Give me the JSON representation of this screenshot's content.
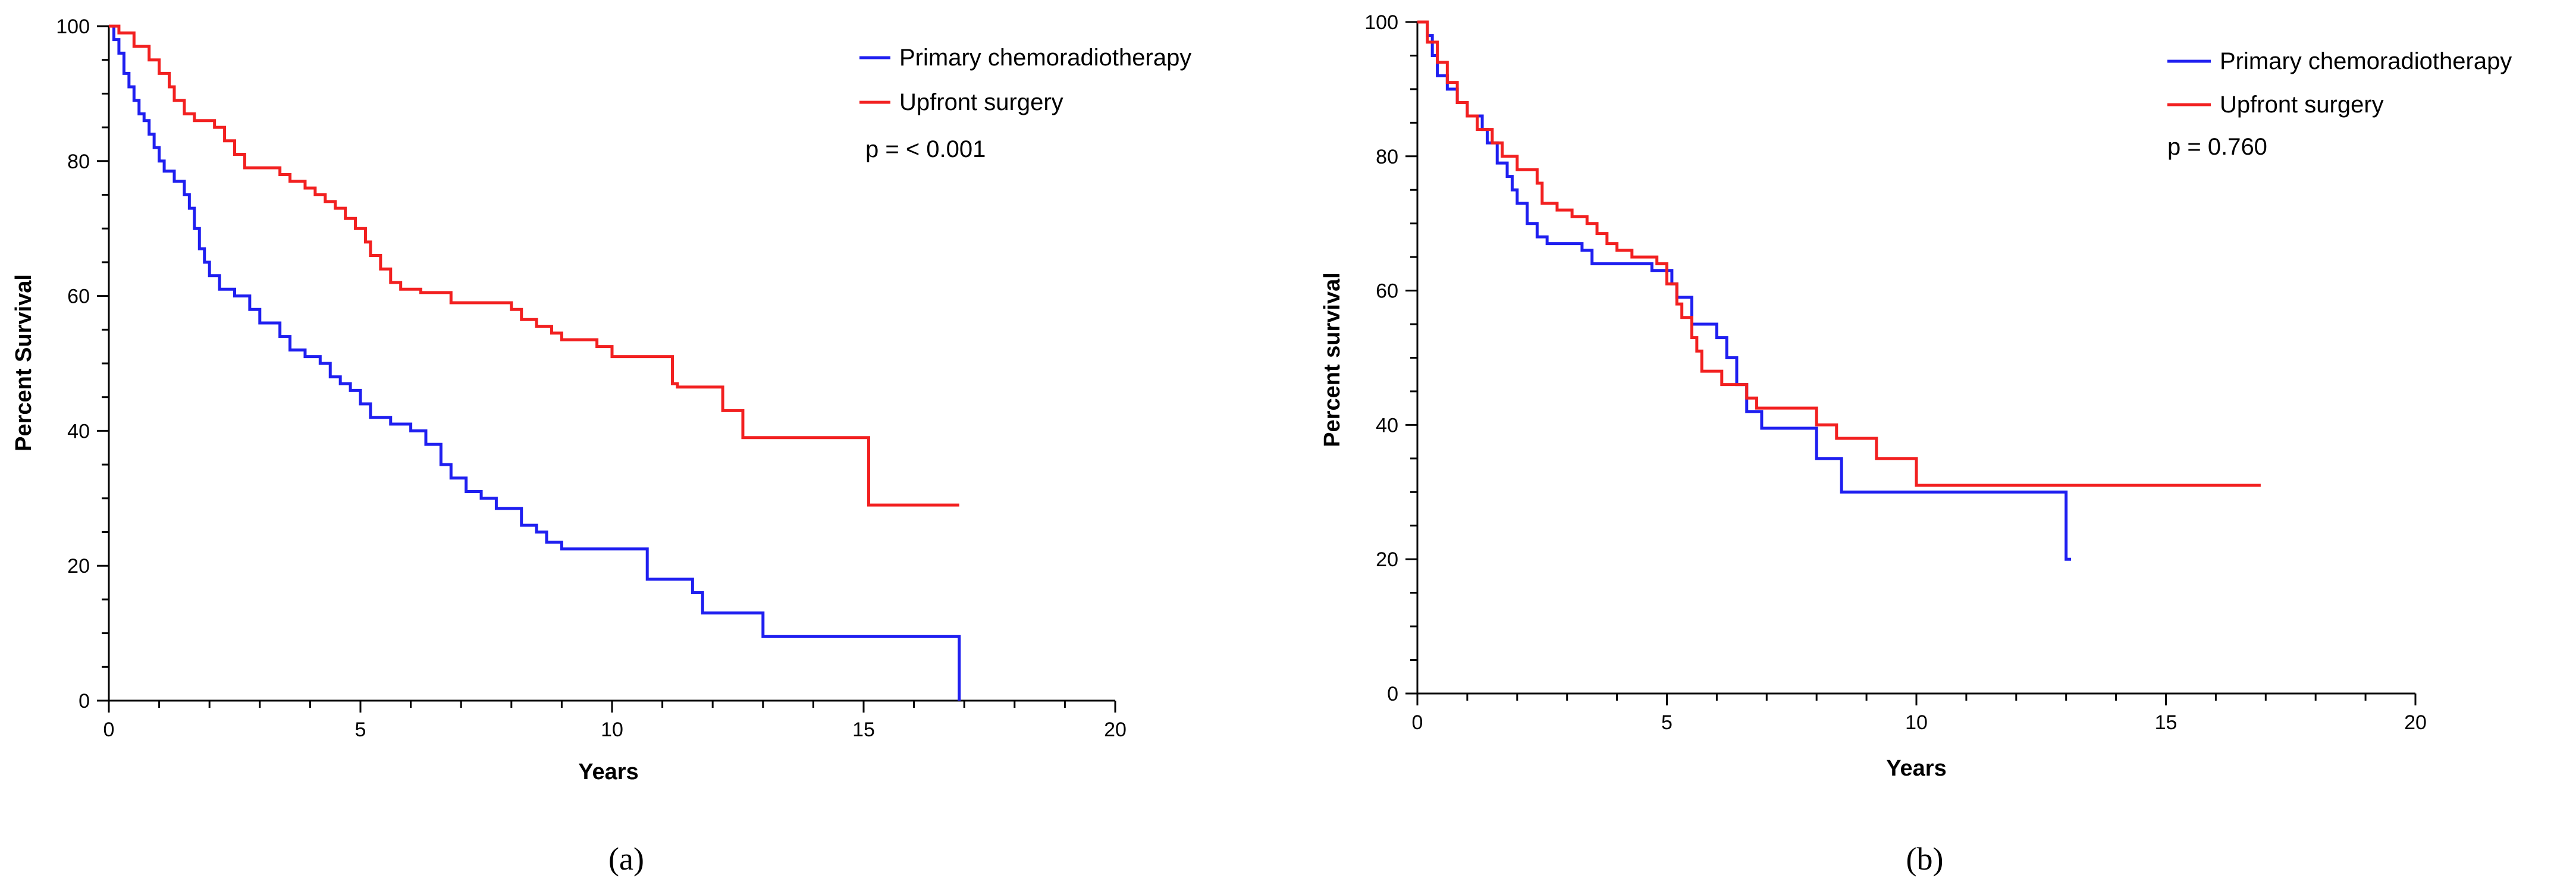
{
  "chart_data": [
    {
      "type": "line",
      "panel_label": "(a)",
      "xlabel": "Years",
      "ylabel": "Percent Survival",
      "xlim": [
        0,
        20
      ],
      "ylim": [
        0,
        100
      ],
      "xticks": [
        0,
        5,
        10,
        15,
        20
      ],
      "yticks": [
        0,
        20,
        40,
        60,
        80,
        100
      ],
      "pvalue": "p = < 0.001",
      "legend_position": "top-right",
      "series": [
        {
          "name": "Primary chemoradiotherapy",
          "color": "#1f1ff0",
          "points": [
            [
              0,
              100
            ],
            [
              0.1,
              98
            ],
            [
              0.2,
              96
            ],
            [
              0.3,
              93
            ],
            [
              0.4,
              91
            ],
            [
              0.5,
              89
            ],
            [
              0.6,
              87
            ],
            [
              0.7,
              86
            ],
            [
              0.8,
              84
            ],
            [
              0.9,
              82
            ],
            [
              1.0,
              80
            ],
            [
              1.1,
              78.5
            ],
            [
              1.3,
              77
            ],
            [
              1.5,
              75
            ],
            [
              1.6,
              73
            ],
            [
              1.7,
              70
            ],
            [
              1.8,
              67
            ],
            [
              1.9,
              65
            ],
            [
              2.0,
              63
            ],
            [
              2.2,
              61
            ],
            [
              2.5,
              60
            ],
            [
              2.8,
              58
            ],
            [
              3.0,
              56
            ],
            [
              3.4,
              54
            ],
            [
              3.6,
              52
            ],
            [
              3.9,
              51
            ],
            [
              4.2,
              50
            ],
            [
              4.4,
              48
            ],
            [
              4.6,
              47
            ],
            [
              4.8,
              46
            ],
            [
              5.0,
              44
            ],
            [
              5.2,
              42
            ],
            [
              5.6,
              41
            ],
            [
              6.0,
              40
            ],
            [
              6.3,
              38
            ],
            [
              6.6,
              35
            ],
            [
              6.8,
              33
            ],
            [
              7.1,
              31
            ],
            [
              7.4,
              30
            ],
            [
              7.7,
              28.5
            ],
            [
              8.2,
              26
            ],
            [
              8.5,
              25
            ],
            [
              8.7,
              23.5
            ],
            [
              9.0,
              22.5
            ],
            [
              10.7,
              18
            ],
            [
              11.6,
              16
            ],
            [
              11.8,
              13
            ],
            [
              13.0,
              9.5
            ],
            [
              16.9,
              0
            ]
          ]
        },
        {
          "name": "Upfront surgery",
          "color": "#f22020",
          "points": [
            [
              0,
              100
            ],
            [
              0.2,
              99
            ],
            [
              0.5,
              97
            ],
            [
              0.8,
              95
            ],
            [
              1.0,
              93
            ],
            [
              1.2,
              91
            ],
            [
              1.3,
              89
            ],
            [
              1.5,
              87
            ],
            [
              1.7,
              86
            ],
            [
              2.1,
              85
            ],
            [
              2.3,
              83
            ],
            [
              2.5,
              81
            ],
            [
              2.7,
              79
            ],
            [
              3.4,
              78
            ],
            [
              3.6,
              77
            ],
            [
              3.9,
              76
            ],
            [
              4.1,
              75
            ],
            [
              4.3,
              74
            ],
            [
              4.5,
              73
            ],
            [
              4.7,
              71.5
            ],
            [
              4.9,
              70
            ],
            [
              5.1,
              68
            ],
            [
              5.2,
              66
            ],
            [
              5.4,
              64
            ],
            [
              5.6,
              62
            ],
            [
              5.8,
              61
            ],
            [
              6.2,
              60.5
            ],
            [
              6.8,
              59
            ],
            [
              8.0,
              58
            ],
            [
              8.2,
              56.5
            ],
            [
              8.5,
              55.5
            ],
            [
              8.8,
              54.5
            ],
            [
              9.0,
              53.5
            ],
            [
              9.7,
              52.5
            ],
            [
              10.0,
              51
            ],
            [
              11.2,
              47
            ],
            [
              11.3,
              46.5
            ],
            [
              12.2,
              43
            ],
            [
              12.6,
              39
            ],
            [
              15.1,
              29
            ],
            [
              16.9,
              29
            ]
          ]
        }
      ]
    },
    {
      "type": "line",
      "panel_label": "(b)",
      "xlabel": "Years",
      "ylabel": "Percent survival",
      "xlim": [
        0,
        20
      ],
      "ylim": [
        0,
        100
      ],
      "xticks": [
        0,
        5,
        10,
        15,
        20
      ],
      "yticks": [
        0,
        20,
        40,
        60,
        80,
        100
      ],
      "pvalue": "p = 0.760",
      "legend_position": "top-right",
      "series": [
        {
          "name": "Primary chemoradiotherapy",
          "color": "#1f1ff0",
          "points": [
            [
              0,
              100
            ],
            [
              0.2,
              98
            ],
            [
              0.3,
              95
            ],
            [
              0.4,
              92
            ],
            [
              0.6,
              90
            ],
            [
              0.8,
              88
            ],
            [
              1.0,
              86
            ],
            [
              1.3,
              84
            ],
            [
              1.4,
              82
            ],
            [
              1.6,
              79
            ],
            [
              1.8,
              77
            ],
            [
              1.9,
              75
            ],
            [
              2.0,
              73
            ],
            [
              2.2,
              70
            ],
            [
              2.4,
              68
            ],
            [
              2.6,
              67
            ],
            [
              3.3,
              66
            ],
            [
              3.5,
              64
            ],
            [
              4.7,
              63
            ],
            [
              5.1,
              61
            ],
            [
              5.2,
              59
            ],
            [
              5.5,
              55
            ],
            [
              6.0,
              53
            ],
            [
              6.2,
              50
            ],
            [
              6.4,
              46
            ],
            [
              6.6,
              42
            ],
            [
              6.9,
              39.5
            ],
            [
              8.0,
              35
            ],
            [
              8.2,
              35
            ],
            [
              8.5,
              30
            ],
            [
              13.0,
              30
            ],
            [
              13.0,
              20
            ],
            [
              13.1,
              20
            ]
          ]
        },
        {
          "name": "Upfront surgery",
          "color": "#f22020",
          "points": [
            [
              0,
              100
            ],
            [
              0.2,
              97
            ],
            [
              0.4,
              94
            ],
            [
              0.6,
              91
            ],
            [
              0.8,
              88
            ],
            [
              1.0,
              86
            ],
            [
              1.2,
              84
            ],
            [
              1.5,
              82
            ],
            [
              1.7,
              80
            ],
            [
              2.0,
              78
            ],
            [
              2.4,
              76
            ],
            [
              2.5,
              73
            ],
            [
              2.8,
              72
            ],
            [
              3.1,
              71
            ],
            [
              3.4,
              70
            ],
            [
              3.6,
              68.5
            ],
            [
              3.8,
              67
            ],
            [
              4.0,
              66
            ],
            [
              4.3,
              65
            ],
            [
              4.8,
              64
            ],
            [
              5.0,
              61
            ],
            [
              5.2,
              58
            ],
            [
              5.3,
              56
            ],
            [
              5.5,
              53
            ],
            [
              5.6,
              51
            ],
            [
              5.7,
              48
            ],
            [
              6.1,
              46
            ],
            [
              6.6,
              44
            ],
            [
              6.8,
              42.5
            ],
            [
              8.0,
              40
            ],
            [
              8.4,
              38
            ],
            [
              9.2,
              35
            ],
            [
              10.0,
              31
            ],
            [
              16.9,
              31
            ]
          ]
        }
      ]
    }
  ]
}
